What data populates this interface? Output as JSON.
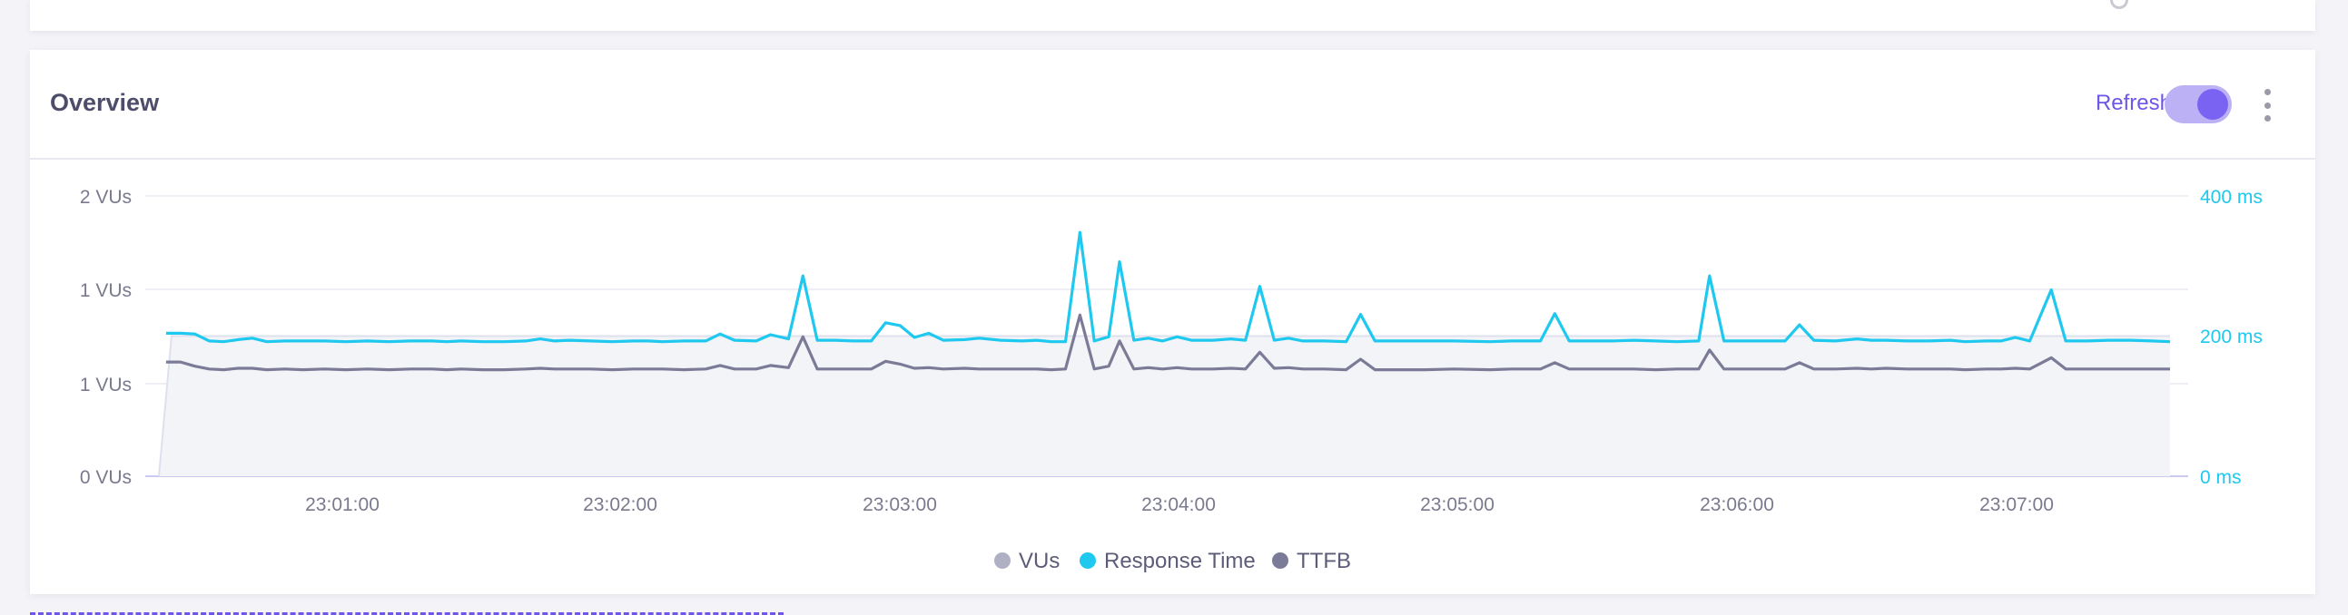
{
  "overview": {
    "title": "Overview",
    "refresh_label": "Refresh",
    "refresh_enabled": true
  },
  "colors": {
    "accent": "#6f55e8",
    "response_time": "#1fc8ee",
    "ttfb": "#7b7b98",
    "vus": "#b0b0c4",
    "vus_area": "#f3f4f7"
  },
  "icons": {
    "menu": "kebab-vertical-icon"
  },
  "chart_data": {
    "type": "line",
    "y_left": {
      "ticks": [
        "0 VUs",
        "1 VUs",
        "1 VUs",
        "2 VUs"
      ],
      "range": [
        0,
        2
      ]
    },
    "y_right": {
      "ticks": [
        "0 ms",
        "200 ms",
        "400 ms"
      ],
      "range": [
        0,
        400
      ]
    },
    "x_ticks": [
      "23:01:00",
      "23:02:00",
      "23:03:00",
      "23:04:00",
      "23:05:00",
      "23:06:00",
      "23:07:00"
    ],
    "x_range_seconds": [
      18,
      462
    ],
    "legend": [
      "VUs",
      "Response Time",
      "TTFB"
    ],
    "legend_placement": "bottom-center",
    "series": [
      {
        "name": "VUs",
        "axis": "left",
        "points": [
          [
            20,
            0
          ],
          [
            22,
            1
          ],
          [
            460,
            1
          ],
          [
            460,
            0
          ]
        ]
      },
      {
        "name": "Response Time",
        "axis": "right",
        "points": [
          [
            22,
            204
          ],
          [
            26,
            204
          ],
          [
            30,
            203
          ],
          [
            34,
            193
          ],
          [
            38,
            192
          ],
          [
            42,
            195
          ],
          [
            46,
            197
          ],
          [
            50,
            192
          ],
          [
            55,
            193
          ],
          [
            60,
            193
          ],
          [
            66,
            193
          ],
          [
            72,
            192
          ],
          [
            78,
            193
          ],
          [
            84,
            192
          ],
          [
            90,
            193
          ],
          [
            96,
            193
          ],
          [
            100,
            192
          ],
          [
            104,
            193
          ],
          [
            110,
            192
          ],
          [
            116,
            192
          ],
          [
            122,
            193
          ],
          [
            126,
            196
          ],
          [
            130,
            193
          ],
          [
            134,
            194
          ],
          [
            140,
            193
          ],
          [
            146,
            192
          ],
          [
            152,
            193
          ],
          [
            156,
            193
          ],
          [
            160,
            192
          ],
          [
            166,
            193
          ],
          [
            172,
            193
          ],
          [
            176,
            203
          ],
          [
            180,
            194
          ],
          [
            186,
            193
          ],
          [
            190,
            202
          ],
          [
            195,
            196
          ],
          [
            199,
            286
          ],
          [
            203,
            194
          ],
          [
            208,
            194
          ],
          [
            213,
            193
          ],
          [
            218,
            193
          ],
          [
            222,
            219
          ],
          [
            226,
            215
          ],
          [
            230,
            198
          ],
          [
            234,
            204
          ],
          [
            238,
            194
          ],
          [
            244,
            195
          ],
          [
            248,
            197
          ],
          [
            254,
            194
          ],
          [
            260,
            193
          ],
          [
            264,
            194
          ],
          [
            268,
            192
          ],
          [
            272,
            192
          ],
          [
            276,
            348
          ],
          [
            280,
            193
          ],
          [
            284,
            199
          ],
          [
            287,
            306
          ],
          [
            291,
            194
          ],
          [
            295,
            197
          ],
          [
            299,
            193
          ],
          [
            303,
            199
          ],
          [
            307,
            194
          ],
          [
            313,
            194
          ],
          [
            318,
            196
          ],
          [
            322,
            194
          ],
          [
            326,
            271
          ],
          [
            330,
            194
          ],
          [
            334,
            197
          ],
          [
            338,
            193
          ],
          [
            344,
            193
          ],
          [
            350,
            192
          ],
          [
            354,
            231
          ],
          [
            358,
            193
          ],
          [
            364,
            193
          ],
          [
            372,
            193
          ],
          [
            380,
            193
          ],
          [
            390,
            192
          ],
          [
            396,
            193
          ],
          [
            404,
            193
          ],
          [
            408,
            232
          ],
          [
            412,
            193
          ],
          [
            418,
            193
          ],
          [
            424,
            193
          ],
          [
            430,
            194
          ],
          [
            436,
            193
          ],
          [
            442,
            192
          ],
          [
            448,
            193
          ],
          [
            451,
            286
          ],
          [
            455,
            193
          ],
          [
            460,
            193
          ],
          [
            466,
            193
          ],
          [
            472,
            193
          ],
          [
            476,
            216
          ],
          [
            480,
            194
          ],
          [
            486,
            193
          ],
          [
            492,
            196
          ],
          [
            496,
            194
          ],
          [
            500,
            194
          ],
          [
            506,
            193
          ],
          [
            512,
            193
          ],
          [
            518,
            194
          ],
          [
            522,
            192
          ],
          [
            528,
            193
          ],
          [
            532,
            193
          ],
          [
            536,
            198
          ],
          [
            540,
            193
          ],
          [
            546,
            266
          ],
          [
            550,
            193
          ],
          [
            556,
            193
          ],
          [
            562,
            194
          ],
          [
            568,
            194
          ],
          [
            574,
            193
          ],
          [
            579,
            192
          ]
        ]
      },
      {
        "name": "TTFB",
        "axis": "right",
        "points": [
          [
            22,
            163
          ],
          [
            26,
            163
          ],
          [
            30,
            157
          ],
          [
            34,
            153
          ],
          [
            38,
            152
          ],
          [
            42,
            154
          ],
          [
            46,
            154
          ],
          [
            50,
            152
          ],
          [
            55,
            153
          ],
          [
            60,
            152
          ],
          [
            66,
            153
          ],
          [
            72,
            152
          ],
          [
            78,
            153
          ],
          [
            84,
            152
          ],
          [
            90,
            153
          ],
          [
            96,
            153
          ],
          [
            100,
            152
          ],
          [
            104,
            153
          ],
          [
            110,
            152
          ],
          [
            116,
            152
          ],
          [
            122,
            153
          ],
          [
            126,
            154
          ],
          [
            130,
            153
          ],
          [
            134,
            153
          ],
          [
            140,
            153
          ],
          [
            146,
            152
          ],
          [
            152,
            153
          ],
          [
            156,
            153
          ],
          [
            160,
            153
          ],
          [
            166,
            152
          ],
          [
            172,
            153
          ],
          [
            176,
            158
          ],
          [
            180,
            153
          ],
          [
            186,
            153
          ],
          [
            190,
            158
          ],
          [
            195,
            155
          ],
          [
            199,
            199
          ],
          [
            203,
            153
          ],
          [
            208,
            153
          ],
          [
            213,
            153
          ],
          [
            218,
            153
          ],
          [
            222,
            164
          ],
          [
            226,
            160
          ],
          [
            230,
            154
          ],
          [
            234,
            155
          ],
          [
            238,
            153
          ],
          [
            244,
            154
          ],
          [
            248,
            153
          ],
          [
            254,
            153
          ],
          [
            260,
            153
          ],
          [
            264,
            153
          ],
          [
            268,
            152
          ],
          [
            272,
            153
          ],
          [
            276,
            230
          ],
          [
            280,
            153
          ],
          [
            284,
            157
          ],
          [
            287,
            193
          ],
          [
            291,
            153
          ],
          [
            295,
            155
          ],
          [
            299,
            153
          ],
          [
            303,
            155
          ],
          [
            307,
            153
          ],
          [
            313,
            153
          ],
          [
            318,
            154
          ],
          [
            322,
            153
          ],
          [
            326,
            177
          ],
          [
            330,
            154
          ],
          [
            334,
            155
          ],
          [
            338,
            153
          ],
          [
            344,
            153
          ],
          [
            350,
            152
          ],
          [
            354,
            167
          ],
          [
            358,
            152
          ],
          [
            364,
            152
          ],
          [
            372,
            152
          ],
          [
            380,
            153
          ],
          [
            390,
            152
          ],
          [
            396,
            153
          ],
          [
            404,
            153
          ],
          [
            408,
            162
          ],
          [
            412,
            153
          ],
          [
            418,
            153
          ],
          [
            424,
            153
          ],
          [
            430,
            153
          ],
          [
            436,
            152
          ],
          [
            442,
            153
          ],
          [
            448,
            153
          ],
          [
            451,
            180
          ],
          [
            455,
            153
          ],
          [
            460,
            153
          ],
          [
            466,
            153
          ],
          [
            472,
            153
          ],
          [
            476,
            162
          ],
          [
            480,
            153
          ],
          [
            486,
            153
          ],
          [
            492,
            154
          ],
          [
            496,
            153
          ],
          [
            500,
            154
          ],
          [
            506,
            153
          ],
          [
            512,
            153
          ],
          [
            518,
            153
          ],
          [
            522,
            152
          ],
          [
            528,
            153
          ],
          [
            532,
            153
          ],
          [
            536,
            154
          ],
          [
            540,
            153
          ],
          [
            546,
            169
          ],
          [
            550,
            153
          ],
          [
            556,
            153
          ],
          [
            562,
            153
          ],
          [
            568,
            153
          ],
          [
            574,
            153
          ],
          [
            579,
            153
          ]
        ]
      }
    ],
    "grid": true
  }
}
